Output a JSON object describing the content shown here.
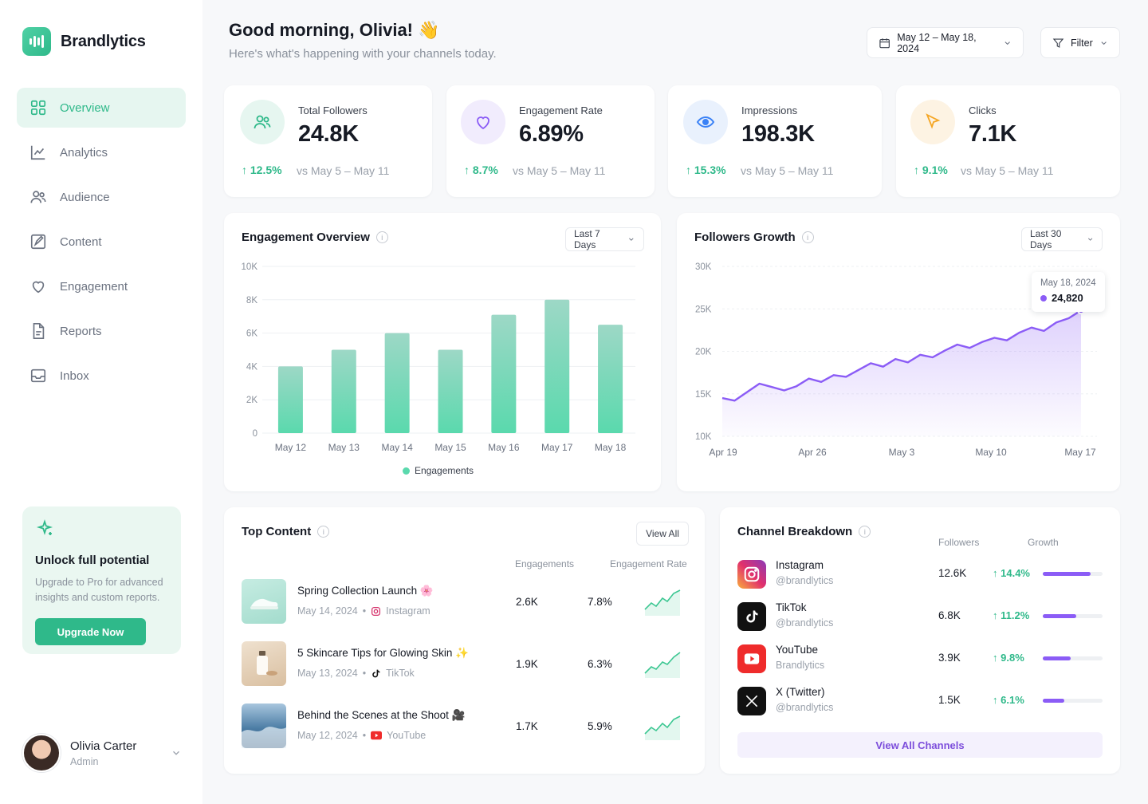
{
  "brand": {
    "name": "Brandlytics"
  },
  "nav": [
    {
      "label": "Overview",
      "icon": "grid-icon",
      "active": true
    },
    {
      "label": "Analytics",
      "icon": "chart-icon"
    },
    {
      "label": "Audience",
      "icon": "users-icon"
    },
    {
      "label": "Content",
      "icon": "edit-icon"
    },
    {
      "label": "Engagement",
      "icon": "heart-icon"
    },
    {
      "label": "Reports",
      "icon": "file-icon"
    },
    {
      "label": "Inbox",
      "icon": "inbox-icon"
    }
  ],
  "promo": {
    "title": "Unlock full potential",
    "text": "Upgrade to Pro for advanced insights and custom reports.",
    "button": "Upgrade Now"
  },
  "user": {
    "name": "Olivia Carter",
    "role": "Admin"
  },
  "header": {
    "greeting": "Good morning, Olivia! 👋",
    "subtitle": "Here's what's happening with your channels today.",
    "date_range": "May 12 – May 18, 2024",
    "filter": "Filter"
  },
  "stats": [
    {
      "label": "Total Followers",
      "value": "24.8K",
      "delta": "12.5%",
      "compare": "vs May 5 – May 11",
      "icon": "users-icon",
      "color": "#2fb98a",
      "bg": "#e6f6f0"
    },
    {
      "label": "Engagement Rate",
      "value": "6.89%",
      "delta": "8.7%",
      "compare": "vs May 5 – May 11",
      "icon": "heart-icon",
      "color": "#8b5cf6",
      "bg": "#f1ecfd"
    },
    {
      "label": "Impressions",
      "value": "198.3K",
      "delta": "15.3%",
      "compare": "vs May 5 – May 11",
      "icon": "eye-icon",
      "color": "#3b82f6",
      "bg": "#e9f1fd"
    },
    {
      "label": "Clicks",
      "value": "7.1K",
      "delta": "9.1%",
      "compare": "vs May 5 – May 11",
      "icon": "cursor-icon",
      "color": "#f5a623",
      "bg": "#fdf3e3"
    }
  ],
  "engagement": {
    "title": "Engagement Overview",
    "range": "Last 7 Days",
    "legend": "Engagements",
    "chart_data": {
      "type": "bar",
      "categories": [
        "May 12",
        "May 13",
        "May 14",
        "May 15",
        "May 16",
        "May 17",
        "May 18"
      ],
      "values": [
        4000,
        5000,
        6000,
        5000,
        7100,
        8000,
        6500
      ],
      "yticks": [
        "0",
        "2K",
        "4K",
        "6K",
        "8K",
        "10K"
      ],
      "ylim": [
        0,
        10000
      ],
      "color": "#5ad9ad"
    }
  },
  "followers": {
    "title": "Followers Growth",
    "range": "Last 30 Days",
    "tooltip": {
      "date": "May 18, 2024",
      "value": "24,820"
    },
    "chart_data": {
      "type": "area",
      "xticks": [
        "Apr 19",
        "Apr 26",
        "May 3",
        "May 10",
        "May 17"
      ],
      "yticks": [
        "10K",
        "15K",
        "20K",
        "25K",
        "30K"
      ],
      "ylim": [
        10000,
        30000
      ],
      "values": [
        14500,
        14200,
        15200,
        16200,
        15800,
        15400,
        15900,
        16800,
        16400,
        17200,
        17000,
        17800,
        18600,
        18200,
        19100,
        18700,
        19600,
        19300,
        20100,
        20800,
        20400,
        21100,
        21600,
        21300,
        22200,
        22800,
        22400,
        23400,
        23900,
        24820
      ],
      "color": "#8b5cf6"
    }
  },
  "top_content": {
    "title": "Top Content",
    "view_all": "View All",
    "col_engagements": "Engagements",
    "col_rate": "Engagement Rate",
    "rows": [
      {
        "title": "Spring Collection Launch 🌸",
        "date": "May 14, 2024",
        "channel": "Instagram",
        "engagements": "2.6K",
        "rate": "7.8%"
      },
      {
        "title": "5 Skincare Tips for Glowing Skin ✨",
        "date": "May 13, 2024",
        "channel": "TikTok",
        "engagements": "1.9K",
        "rate": "6.3%"
      },
      {
        "title": "Behind the Scenes at the Shoot 🎥",
        "date": "May 12, 2024",
        "channel": "YouTube",
        "engagements": "1.7K",
        "rate": "5.9%"
      }
    ]
  },
  "channels": {
    "title": "Channel Breakdown",
    "col_followers": "Followers",
    "col_growth": "Growth",
    "view_all": "View All Channels",
    "rows": [
      {
        "name": "Instagram",
        "handle": "@brandlytics",
        "followers": "12.6K",
        "growth": "14.4%",
        "share": 0.8
      },
      {
        "name": "TikTok",
        "handle": "@brandlytics",
        "followers": "6.8K",
        "growth": "11.2%",
        "share": 0.56
      },
      {
        "name": "YouTube",
        "handle": "Brandlytics",
        "followers": "3.9K",
        "growth": "9.8%",
        "share": 0.46
      },
      {
        "name": "X (Twitter)",
        "handle": "@brandlytics",
        "followers": "1.5K",
        "growth": "6.1%",
        "share": 0.36
      }
    ]
  }
}
